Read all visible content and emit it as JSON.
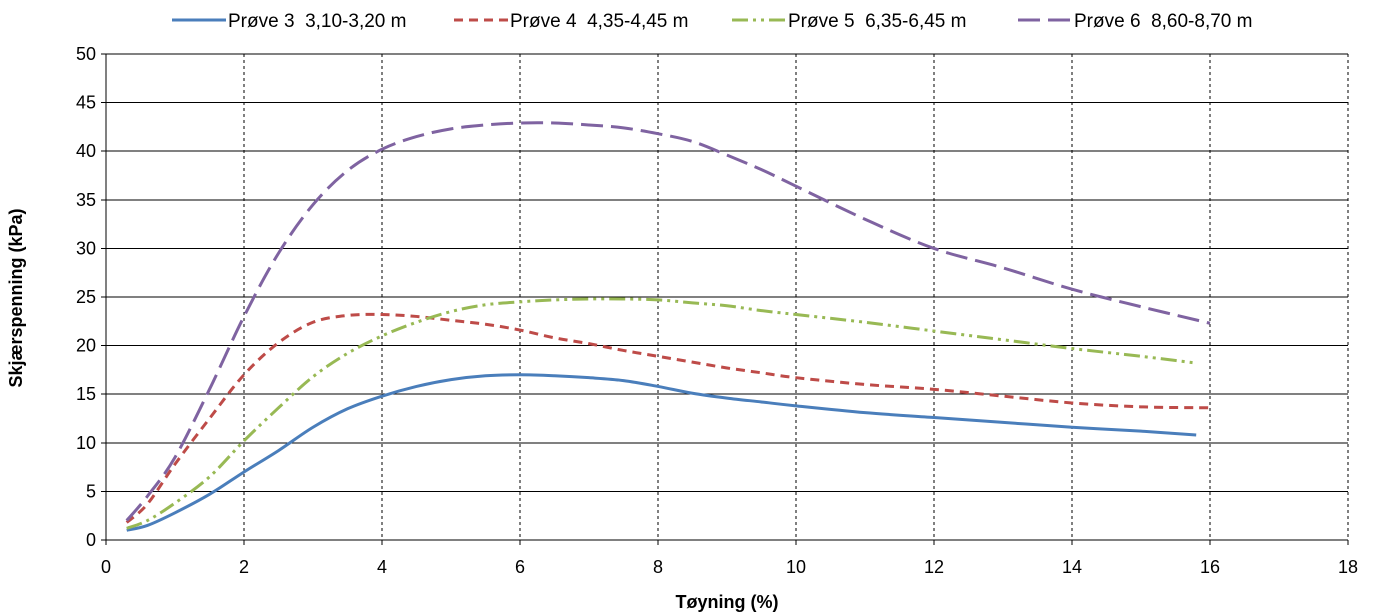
{
  "chart_data": {
    "type": "line",
    "title": "",
    "xlabel": "Tøyning (%)",
    "ylabel": "Skjærspenning (kPa)",
    "xlim": [
      0,
      18
    ],
    "ylim": [
      0,
      50
    ],
    "x_ticks": [
      0,
      2,
      4,
      6,
      8,
      10,
      12,
      14,
      16,
      18
    ],
    "y_ticks": [
      0,
      5,
      10,
      15,
      20,
      25,
      30,
      35,
      40,
      45,
      50
    ],
    "grid": {
      "horizontal": "solid",
      "vertical": "dashed"
    },
    "legend_position": "top",
    "series": [
      {
        "name": "Prøve 3  3,10-3,20 m",
        "color": "#4a7ebb",
        "dash": "solid",
        "x": [
          0.3,
          0.6,
          1.0,
          1.5,
          2.0,
          2.5,
          3.0,
          3.5,
          4.0,
          4.5,
          5.0,
          5.5,
          6.0,
          6.5,
          7.0,
          7.5,
          8.0,
          8.5,
          9.0,
          9.5,
          10.0,
          11.0,
          12.0,
          13.0,
          14.0,
          15.0,
          15.8
        ],
        "y": [
          1.0,
          1.5,
          2.8,
          4.7,
          7.0,
          9.2,
          11.6,
          13.5,
          14.8,
          15.8,
          16.5,
          16.9,
          17.0,
          16.9,
          16.7,
          16.4,
          15.8,
          15.1,
          14.6,
          14.2,
          13.8,
          13.1,
          12.6,
          12.1,
          11.6,
          11.2,
          10.8
        ]
      },
      {
        "name": "Prøve 4  4,35-4,45 m",
        "color": "#be4b48",
        "dash": "short-dash",
        "x": [
          0.3,
          0.6,
          1.0,
          1.5,
          2.0,
          2.5,
          3.0,
          3.5,
          4.0,
          4.5,
          5.0,
          5.5,
          6.0,
          6.5,
          7.0,
          7.5,
          8.0,
          8.5,
          9.0,
          9.5,
          10.0,
          11.0,
          12.0,
          13.0,
          14.0,
          15.0,
          16.0
        ],
        "y": [
          1.8,
          3.7,
          7.8,
          12.5,
          17.0,
          20.3,
          22.4,
          23.1,
          23.2,
          23.0,
          22.6,
          22.2,
          21.6,
          20.8,
          20.2,
          19.5,
          18.9,
          18.3,
          17.7,
          17.2,
          16.7,
          16.0,
          15.5,
          14.8,
          14.1,
          13.7,
          13.6
        ]
      },
      {
        "name": "Prøve 5  6,35-6,45 m",
        "color": "#98b954",
        "dash": "dash-dot-dot",
        "x": [
          0.3,
          0.6,
          1.0,
          1.5,
          2.0,
          2.5,
          3.0,
          3.5,
          4.0,
          4.5,
          5.0,
          5.5,
          6.0,
          6.5,
          7.0,
          7.5,
          8.0,
          8.5,
          9.0,
          9.5,
          10.0,
          11.0,
          12.0,
          13.0,
          14.0,
          15.0,
          15.8
        ],
        "y": [
          1.2,
          2.0,
          3.8,
          6.5,
          10.2,
          13.6,
          16.8,
          19.2,
          21.0,
          22.4,
          23.5,
          24.2,
          24.5,
          24.7,
          24.8,
          24.8,
          24.7,
          24.4,
          24.1,
          23.6,
          23.2,
          22.4,
          21.5,
          20.6,
          19.7,
          18.9,
          18.2
        ]
      },
      {
        "name": "Prøve 6  8,60-8,70 m",
        "color": "#7f63a1",
        "dash": "long-dash",
        "x": [
          0.3,
          0.6,
          1.0,
          1.5,
          2.0,
          2.5,
          3.0,
          3.5,
          4.0,
          4.5,
          5.0,
          5.5,
          6.0,
          6.5,
          7.0,
          7.5,
          8.0,
          8.5,
          9.0,
          9.5,
          10.0,
          11.0,
          12.0,
          13.0,
          14.0,
          15.0,
          16.0
        ],
        "y": [
          2.0,
          4.5,
          8.5,
          15.5,
          23.0,
          29.5,
          34.5,
          38.0,
          40.2,
          41.5,
          42.3,
          42.7,
          42.9,
          42.9,
          42.7,
          42.4,
          41.8,
          41.0,
          39.6,
          38.1,
          36.4,
          33.0,
          30.0,
          28.0,
          25.8,
          24.0,
          22.3
        ]
      }
    ]
  }
}
